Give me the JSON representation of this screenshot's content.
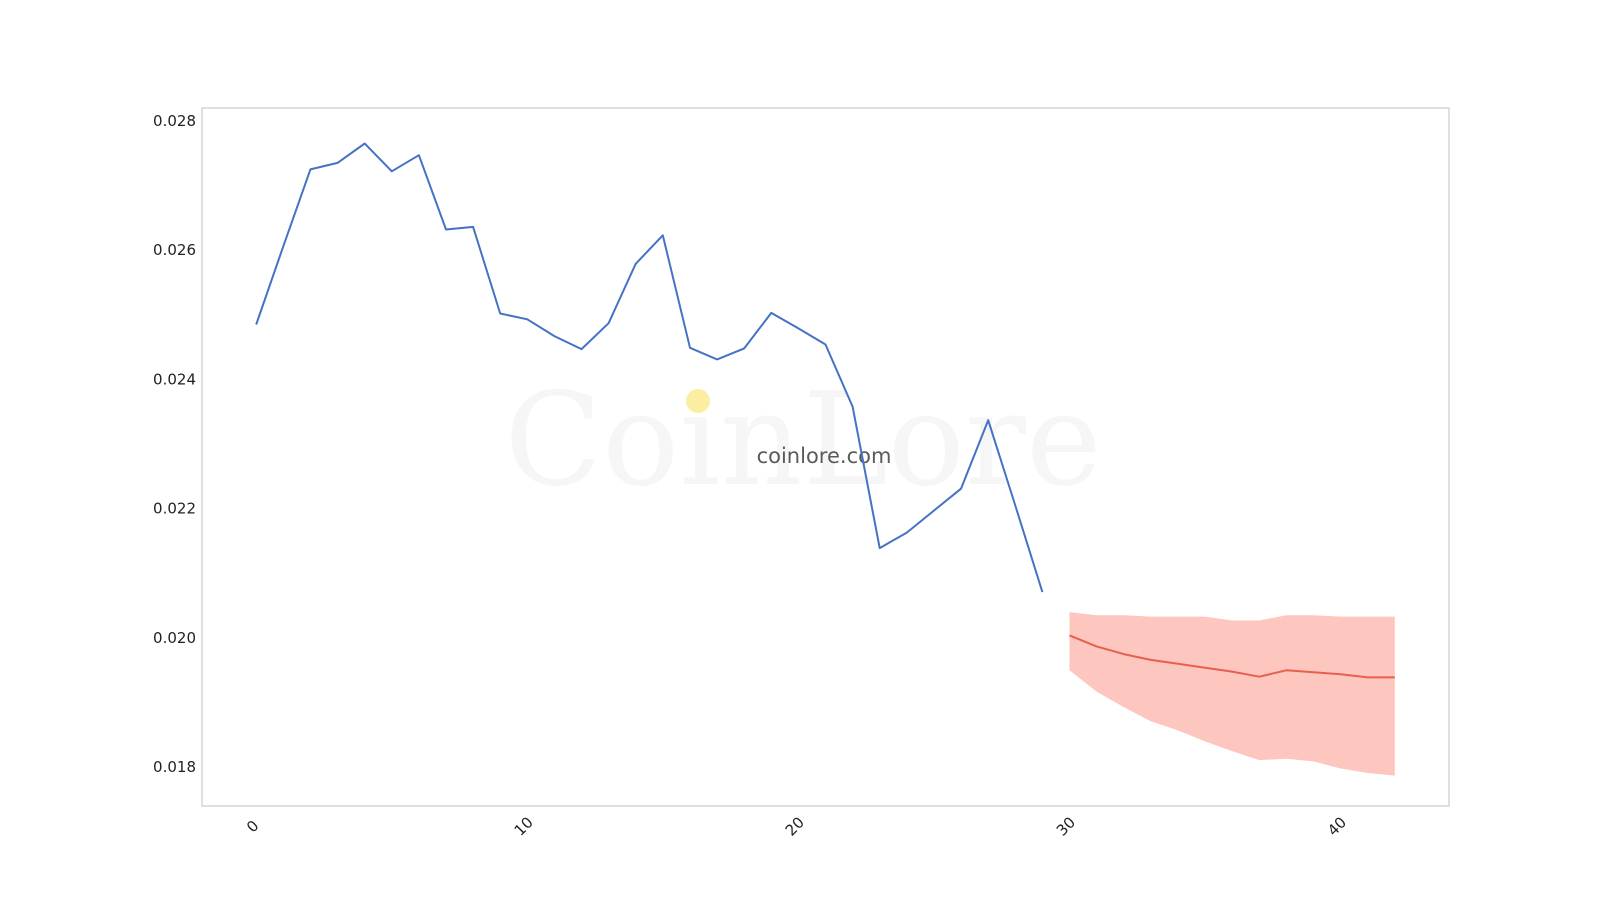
{
  "chart_data": {
    "type": "line",
    "title": "",
    "xlabel": "",
    "ylabel": "",
    "xlim": [
      -2,
      44
    ],
    "ylim": [
      0.0174,
      0.0282
    ],
    "x_ticks": [
      0,
      10,
      20,
      30,
      40
    ],
    "y_ticks": [
      0.018,
      0.02,
      0.022,
      0.024,
      0.026,
      0.028
    ],
    "y_tick_labels": [
      "0.018",
      "0.020",
      "0.022",
      "0.024",
      "0.026",
      "0.028"
    ],
    "grid": false,
    "legend": "none",
    "series": [
      {
        "kind": "history",
        "color": "#4472c4",
        "x": [
          0,
          1,
          2,
          3,
          4,
          5,
          6,
          7,
          8,
          9,
          10,
          11,
          12,
          13,
          14,
          15,
          16,
          17,
          18,
          19,
          20,
          21,
          22,
          23,
          24,
          25,
          26,
          27,
          28,
          29
        ],
        "values": [
          0.02485,
          0.02606,
          0.02725,
          0.02735,
          0.02765,
          0.02722,
          0.02747,
          0.02632,
          0.02636,
          0.02502,
          0.02493,
          0.02467,
          0.02447,
          0.02487,
          0.02579,
          0.02623,
          0.02449,
          0.02431,
          0.02448,
          0.02503,
          0.02479,
          0.02454,
          0.02358,
          0.02139,
          0.02163,
          0.02197,
          0.02231,
          0.02337,
          0.02205,
          0.02071
        ]
      },
      {
        "kind": "forecast",
        "color": "#e8604c",
        "x": [
          30,
          31,
          32,
          33,
          34,
          35,
          36,
          37,
          38,
          39,
          40,
          41,
          42
        ],
        "values": [
          0.02004,
          0.01987,
          0.01975,
          0.01966,
          0.0196,
          0.01954,
          0.01948,
          0.0194,
          0.0195,
          0.01947,
          0.01944,
          0.01939,
          0.01939
        ]
      }
    ],
    "band": {
      "color": "#fdc6be",
      "x": [
        30,
        31,
        32,
        33,
        34,
        35,
        36,
        37,
        38,
        39,
        40,
        41,
        42
      ],
      "upper": [
        0.0204,
        0.02035,
        0.02035,
        0.02033,
        0.02033,
        0.02033,
        0.02027,
        0.02027,
        0.02035,
        0.02035,
        0.02033,
        0.02033,
        0.02033
      ],
      "lower": [
        0.0195,
        0.01917,
        0.01893,
        0.01871,
        0.01857,
        0.0184,
        0.01825,
        0.01811,
        0.01813,
        0.01809,
        0.01798,
        0.01791,
        0.01787
      ]
    }
  },
  "watermark": {
    "brand": "CoinLore",
    "site": "coinlore.com",
    "dot_color": "#fbeea0"
  },
  "colors": {
    "frame": "#cccccc",
    "history": "#4472c4",
    "forecast": "#e8604c",
    "band": "#fdc6be"
  }
}
